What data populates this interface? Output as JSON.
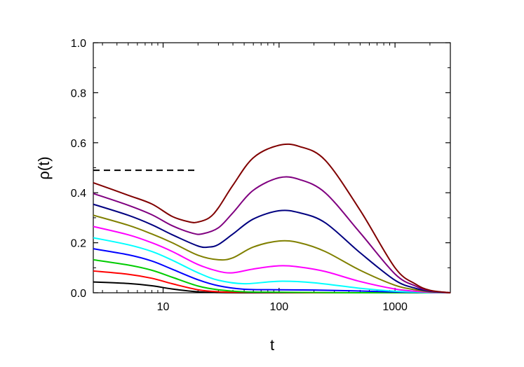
{
  "chart_data": {
    "type": "line",
    "title": "",
    "xlabel": "t",
    "ylabel": "ρ(t)",
    "xscale": "log",
    "xlim": [
      2.5,
      3000
    ],
    "ylim": [
      0.0,
      1.0
    ],
    "grid": false,
    "legend": "none",
    "x_tick_labels": [
      "10",
      "100",
      "1000"
    ],
    "x_tick_values": [
      10,
      100,
      1000
    ],
    "y_tick_labels": [
      "0.0",
      "0.2",
      "0.4",
      "0.6",
      "0.8",
      "1.0"
    ],
    "y_tick_values": [
      0.0,
      0.2,
      0.4,
      0.6,
      0.8,
      1.0
    ],
    "reference_line": {
      "style": "dashed",
      "color": "#000000",
      "x": [
        2.5,
        20
      ],
      "y": [
        0.49,
        0.49
      ]
    },
    "series": [
      {
        "color": "#000000",
        "x": [
          2.5,
          5,
          8,
          12,
          20,
          30,
          50,
          100,
          200,
          500,
          1000,
          1500,
          2000,
          3000
        ],
        "y": [
          0.043,
          0.037,
          0.028,
          0.015,
          0.004,
          0.001,
          0.0,
          0.0,
          0.0,
          0.0,
          0.0,
          0.0,
          0.0,
          0.0
        ]
      },
      {
        "color": "#ff0000",
        "x": [
          2.5,
          5,
          8,
          12,
          20,
          30,
          50,
          100,
          200,
          500,
          1000,
          1500,
          2000,
          3000
        ],
        "y": [
          0.087,
          0.074,
          0.058,
          0.036,
          0.012,
          0.004,
          0.002,
          0.001,
          0.0,
          0.0,
          0.0,
          0.0,
          0.0,
          0.0
        ]
      },
      {
        "color": "#00cc00",
        "x": [
          2.5,
          5,
          8,
          12,
          20,
          30,
          50,
          100,
          200,
          500,
          1000,
          1500,
          2000,
          3000
        ],
        "y": [
          0.132,
          0.111,
          0.09,
          0.062,
          0.027,
          0.012,
          0.004,
          0.002,
          0.001,
          0.0,
          0.0,
          0.0,
          0.0,
          0.0
        ]
      },
      {
        "color": "#0000ff",
        "x": [
          2.5,
          5,
          8,
          12,
          20,
          30,
          50,
          100,
          200,
          500,
          1000,
          1500,
          2000,
          3000
        ],
        "y": [
          0.176,
          0.152,
          0.127,
          0.094,
          0.052,
          0.028,
          0.014,
          0.012,
          0.011,
          0.007,
          0.003,
          0.002,
          0.001,
          0.0
        ]
      },
      {
        "color": "#00ffff",
        "x": [
          2.5,
          5,
          8,
          12,
          20,
          30,
          50,
          100,
          200,
          500,
          1000,
          1500,
          2000,
          3000
        ],
        "y": [
          0.22,
          0.192,
          0.165,
          0.13,
          0.08,
          0.05,
          0.036,
          0.046,
          0.04,
          0.018,
          0.006,
          0.003,
          0.001,
          0.0
        ]
      },
      {
        "color": "#ff00ff",
        "x": [
          2.5,
          5,
          8,
          12,
          20,
          30,
          40,
          60,
          100,
          150,
          250,
          500,
          1000,
          1500,
          2000,
          3000
        ],
        "y": [
          0.265,
          0.232,
          0.2,
          0.165,
          0.113,
          0.086,
          0.08,
          0.095,
          0.108,
          0.103,
          0.085,
          0.045,
          0.015,
          0.006,
          0.002,
          0.0
        ]
      },
      {
        "color": "#808000",
        "x": [
          2.5,
          5,
          8,
          12,
          20,
          30,
          40,
          60,
          100,
          150,
          250,
          500,
          1000,
          1500,
          2000,
          3000
        ],
        "y": [
          0.31,
          0.27,
          0.235,
          0.2,
          0.15,
          0.132,
          0.14,
          0.183,
          0.207,
          0.2,
          0.165,
          0.09,
          0.03,
          0.012,
          0.004,
          0.0
        ]
      },
      {
        "color": "#000080",
        "x": [
          2.5,
          5,
          8,
          12,
          20,
          25,
          30,
          40,
          60,
          100,
          150,
          250,
          500,
          1000,
          1500,
          2000,
          3000
        ],
        "y": [
          0.354,
          0.31,
          0.272,
          0.232,
          0.187,
          0.183,
          0.193,
          0.235,
          0.295,
          0.328,
          0.32,
          0.28,
          0.16,
          0.05,
          0.018,
          0.006,
          0.0
        ]
      },
      {
        "color": "#800080",
        "x": [
          2.5,
          5,
          8,
          12,
          18,
          22,
          30,
          40,
          60,
          100,
          150,
          250,
          500,
          1000,
          1500,
          2000,
          3000
        ],
        "y": [
          0.397,
          0.35,
          0.312,
          0.268,
          0.238,
          0.236,
          0.26,
          0.32,
          0.41,
          0.46,
          0.453,
          0.4,
          0.24,
          0.075,
          0.027,
          0.008,
          0.0
        ]
      },
      {
        "color": "#800000",
        "x": [
          2.5,
          5,
          8,
          12,
          17,
          20,
          25,
          30,
          40,
          60,
          100,
          150,
          250,
          500,
          1000,
          1500,
          2000,
          3000
        ],
        "y": [
          0.44,
          0.39,
          0.355,
          0.305,
          0.283,
          0.283,
          0.3,
          0.34,
          0.43,
          0.54,
          0.59,
          0.585,
          0.53,
          0.33,
          0.1,
          0.035,
          0.01,
          0.0
        ]
      }
    ]
  }
}
